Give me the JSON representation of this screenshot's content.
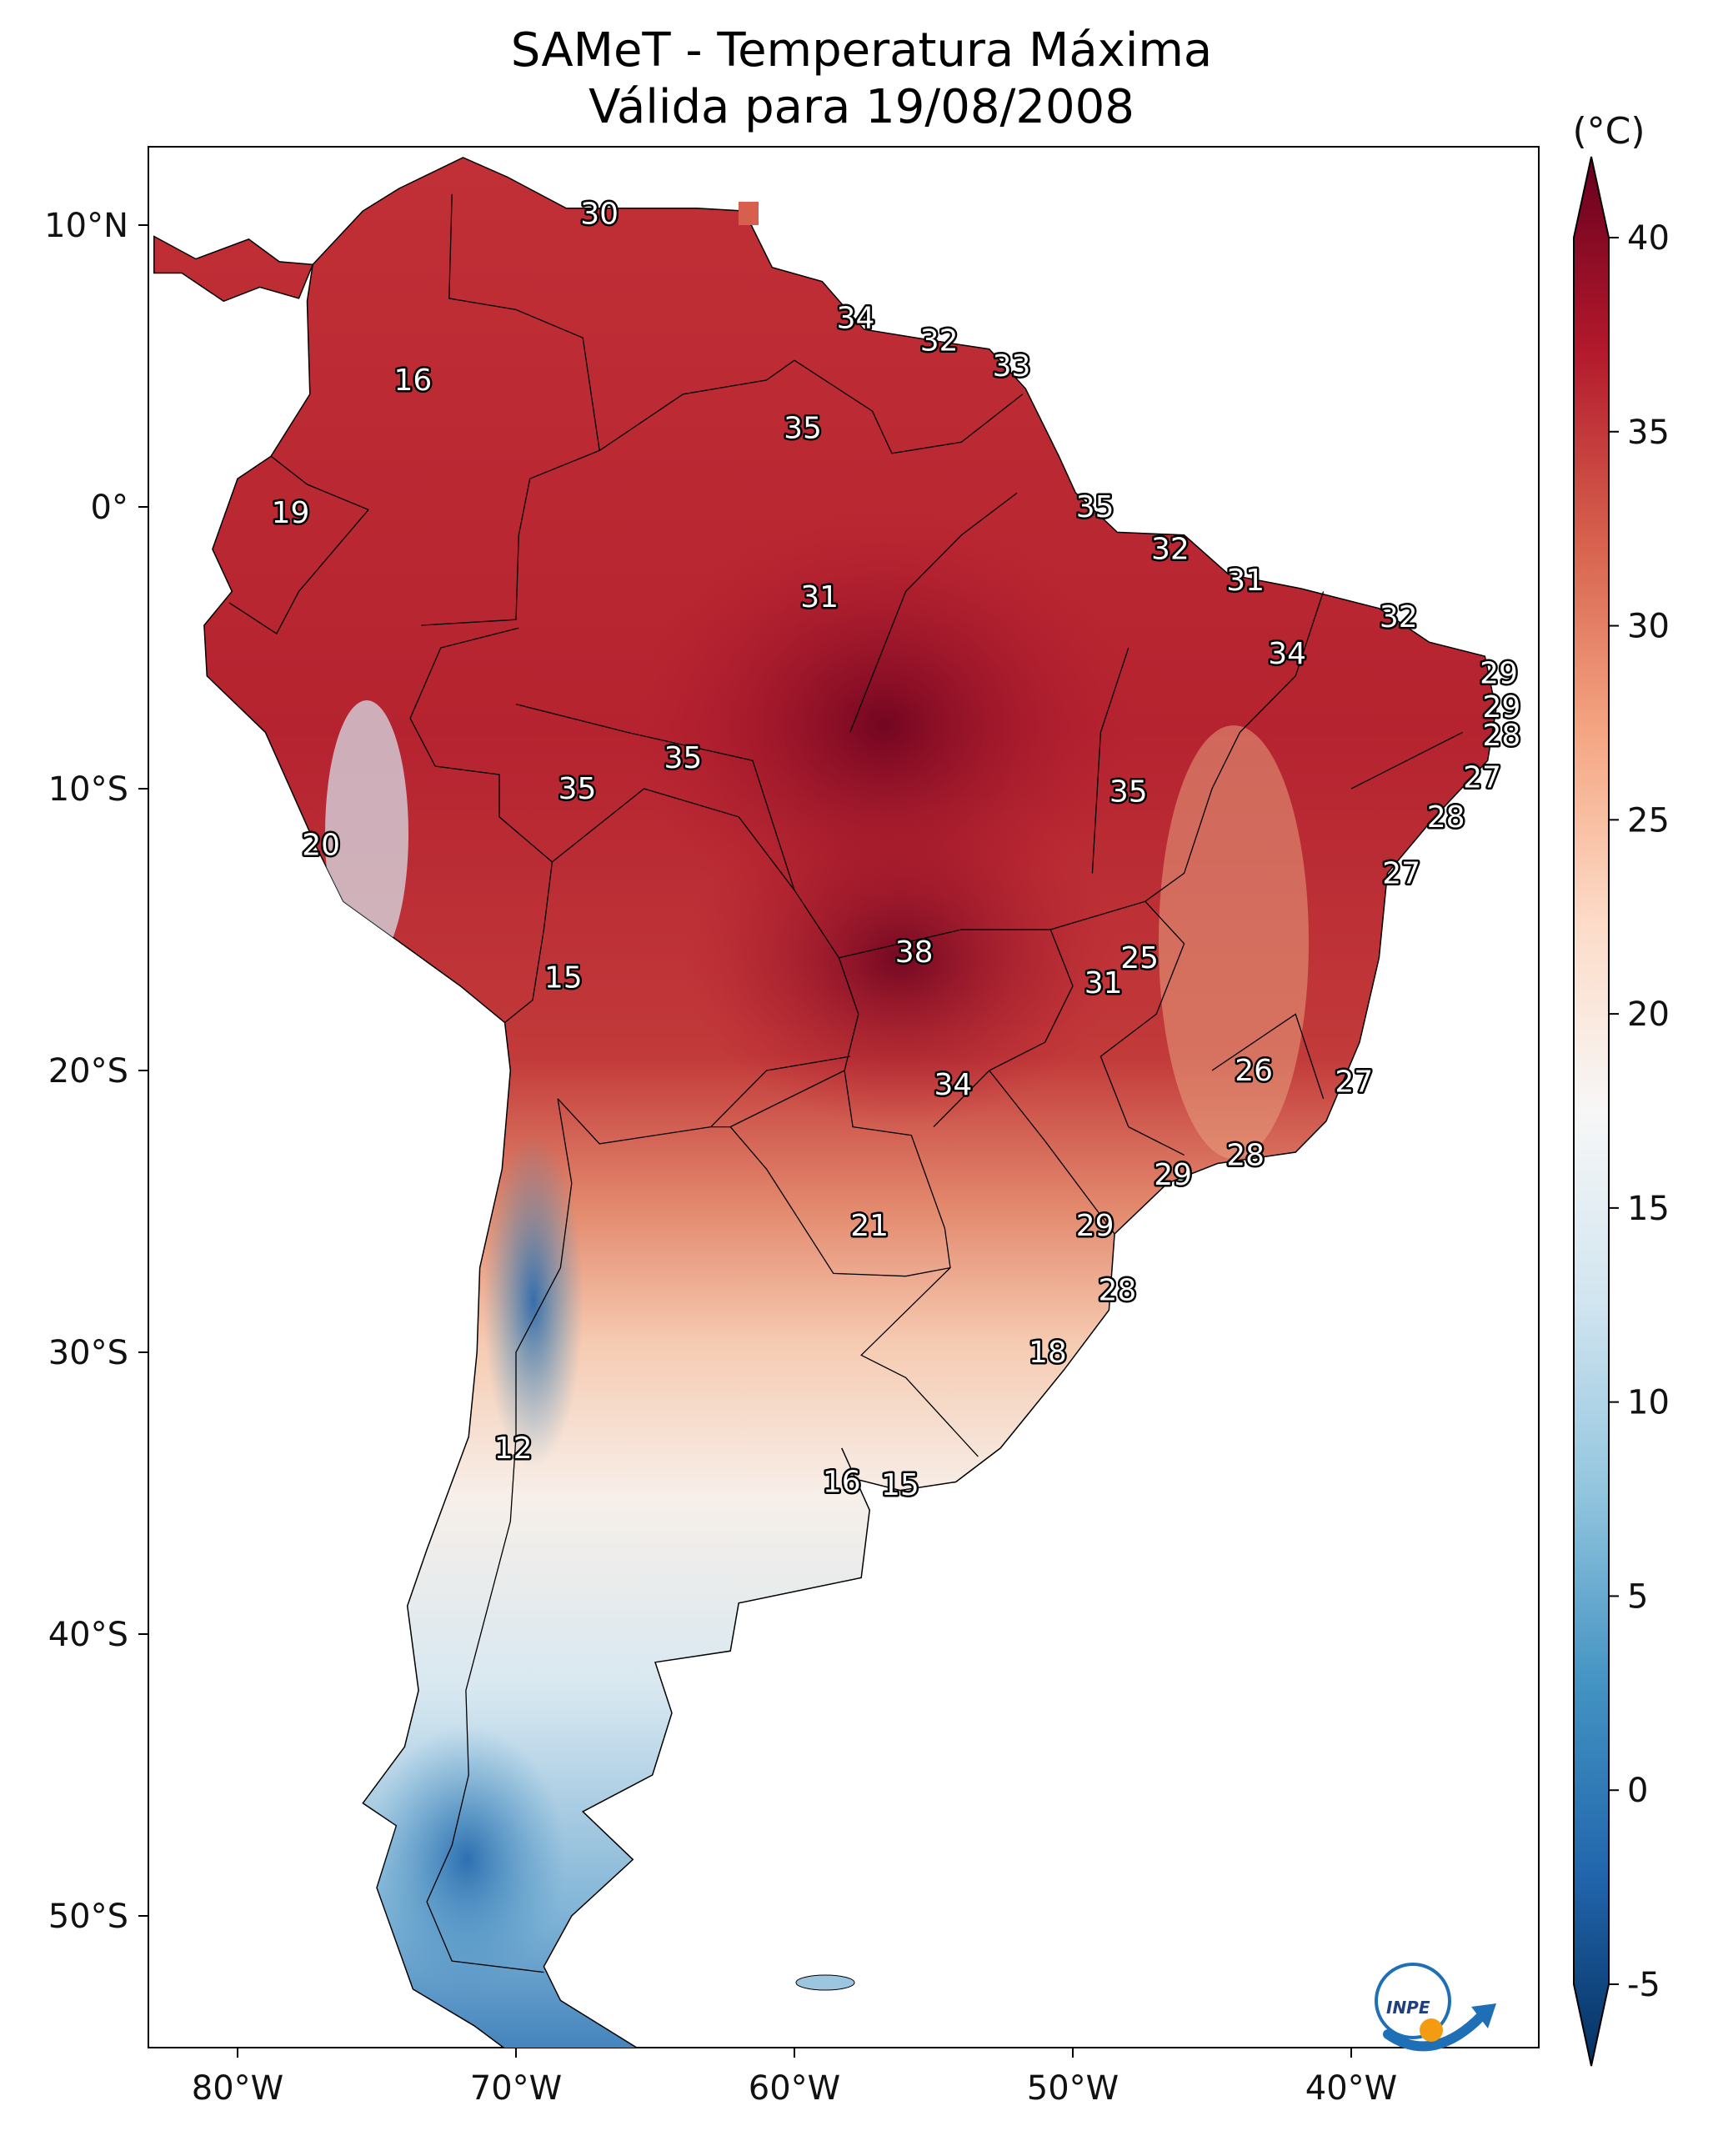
{
  "title": {
    "line1": "SAMeT - Temperatura Máxima",
    "line2": "Válida para 19/08/2008"
  },
  "axes": {
    "lon_ticks": [
      "80°W",
      "70°W",
      "60°W",
      "50°W",
      "40°W"
    ],
    "lat_ticks": [
      "10°N",
      "0°",
      "10°S",
      "20°S",
      "30°S",
      "40°S",
      "50°S"
    ]
  },
  "colorbar": {
    "unit": "(°C)",
    "ticks": [
      "40",
      "35",
      "30",
      "25",
      "20",
      "15",
      "10",
      "5",
      "0",
      "-5"
    ],
    "min": -5,
    "max": 40,
    "colors": [
      "#053061",
      "#2166ac",
      "#4393c3",
      "#92c5de",
      "#d1e5f0",
      "#f7f7f7",
      "#fddbc7",
      "#f4a582",
      "#d6604d",
      "#b2182b",
      "#67001f"
    ]
  },
  "map_labels": [
    {
      "text": "30",
      "lat": 10.4,
      "lon": -67.0
    },
    {
      "text": "34",
      "lat": 6.7,
      "lon": -57.8
    },
    {
      "text": "32",
      "lat": 5.9,
      "lon": -54.8
    },
    {
      "text": "33",
      "lat": 5.0,
      "lon": -52.2
    },
    {
      "text": "16",
      "lat": 4.5,
      "lon": -73.7
    },
    {
      "text": "35",
      "lat": 2.8,
      "lon": -59.7
    },
    {
      "text": "35",
      "lat": 0.0,
      "lon": -49.2
    },
    {
      "text": "19",
      "lat": -0.2,
      "lon": -78.1
    },
    {
      "text": "32",
      "lat": -1.5,
      "lon": -46.5
    },
    {
      "text": "31",
      "lat": -2.6,
      "lon": -43.8
    },
    {
      "text": "31",
      "lat": -3.2,
      "lon": -59.1
    },
    {
      "text": "32",
      "lat": -3.9,
      "lon": -38.3
    },
    {
      "text": "34",
      "lat": -5.2,
      "lon": -42.3
    },
    {
      "text": "29",
      "lat": -5.9,
      "lon": -34.7
    },
    {
      "text": "29",
      "lat": -7.1,
      "lon": -34.6
    },
    {
      "text": "28",
      "lat": -8.1,
      "lon": -34.6
    },
    {
      "text": "35",
      "lat": -8.9,
      "lon": -64.0
    },
    {
      "text": "27",
      "lat": -9.6,
      "lon": -35.3
    },
    {
      "text": "35",
      "lat": -10.0,
      "lon": -67.8
    },
    {
      "text": "35",
      "lat": -10.1,
      "lon": -48.0
    },
    {
      "text": "28",
      "lat": -11.0,
      "lon": -36.6
    },
    {
      "text": "20",
      "lat": -12.0,
      "lon": -77.0
    },
    {
      "text": "27",
      "lat": -13.0,
      "lon": -38.2
    },
    {
      "text": "38",
      "lat": -15.8,
      "lon": -55.7
    },
    {
      "text": "25",
      "lat": -16.0,
      "lon": -47.6
    },
    {
      "text": "15",
      "lat": -16.7,
      "lon": -68.3
    },
    {
      "text": "31",
      "lat": -16.9,
      "lon": -48.9
    },
    {
      "text": "26",
      "lat": -20.0,
      "lon": -43.5
    },
    {
      "text": "34",
      "lat": -20.5,
      "lon": -54.3
    },
    {
      "text": "27",
      "lat": -20.4,
      "lon": -39.9
    },
    {
      "text": "28",
      "lat": -23.0,
      "lon": -43.8
    },
    {
      "text": "29",
      "lat": -23.7,
      "lon": -46.4
    },
    {
      "text": "21",
      "lat": -25.5,
      "lon": -57.3
    },
    {
      "text": "29",
      "lat": -25.5,
      "lon": -49.2
    },
    {
      "text": "28",
      "lat": -27.8,
      "lon": -48.4
    },
    {
      "text": "18",
      "lat": -30.0,
      "lon": -50.9
    },
    {
      "text": "12",
      "lat": -33.4,
      "lon": -70.1
    },
    {
      "text": "16",
      "lat": -34.6,
      "lon": -58.3
    },
    {
      "text": "15",
      "lat": -34.7,
      "lon": -56.2
    }
  ],
  "legend": {
    "logo_text": "INPE",
    "brand_colors": {
      "blue": "#1f6fb7",
      "orange": "#f39c12"
    }
  }
}
